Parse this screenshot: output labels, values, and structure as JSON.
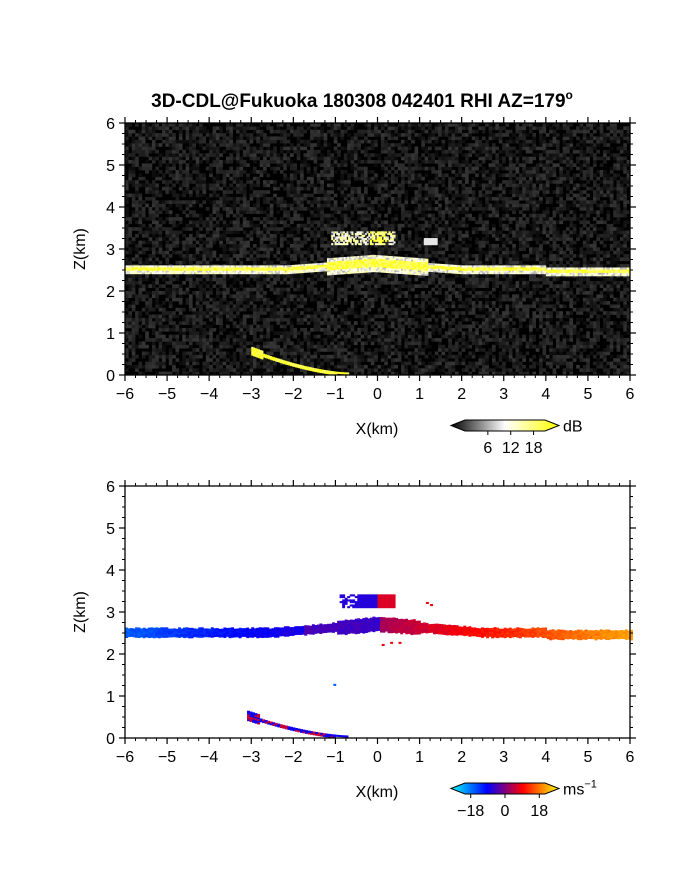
{
  "chart_data": [
    {
      "type": "heatmap",
      "title": "3D-CDL@Fukuoka 180308 042401 RHI AZ=179",
      "title_superscript": "o",
      "xlabel": "X(km)",
      "ylabel": "Z(km)",
      "xlim": [
        -6,
        6
      ],
      "ylim": [
        0,
        6
      ],
      "x_ticks": [
        "-6",
        "-5",
        "-4",
        "-3",
        "-2",
        "-1",
        "0",
        "1",
        "2",
        "3",
        "4",
        "5",
        "6"
      ],
      "y_ticks": [
        "0",
        "1",
        "2",
        "3",
        "4",
        "5",
        "6"
      ],
      "quantity": "backscatter intensity",
      "colorbar": {
        "unit": "dB",
        "ticks": [
          "6",
          "12",
          "18"
        ],
        "range": [
          0,
          21
        ],
        "colors": [
          "#000000",
          "#ffffff",
          "#ffff00"
        ]
      },
      "features": [
        {
          "name": "cloud-base layer",
          "x": [
            -6,
            6
          ],
          "z": [
            2.35,
            2.65
          ],
          "intensity_db": 18
        },
        {
          "name": "elevated echo",
          "x": [
            -1.1,
            0.4
          ],
          "z": [
            3.1,
            3.4
          ],
          "intensity_db": 14
        },
        {
          "name": "near-surface streak",
          "x": [
            -3.0,
            -0.7
          ],
          "z": [
            0.0,
            0.6
          ],
          "intensity_db": 18
        }
      ]
    },
    {
      "type": "heatmap",
      "xlabel": "X(km)",
      "ylabel": "Z(km)",
      "xlim": [
        -6,
        6
      ],
      "ylim": [
        0,
        6
      ],
      "x_ticks": [
        "-6",
        "-5",
        "-4",
        "-3",
        "-2",
        "-1",
        "0",
        "1",
        "2",
        "3",
        "4",
        "5",
        "6"
      ],
      "y_ticks": [
        "0",
        "1",
        "2",
        "3",
        "4",
        "5",
        "6"
      ],
      "quantity": "Doppler velocity",
      "colorbar": {
        "unit": "ms",
        "unit_superscript": "-1",
        "ticks": [
          "-18",
          "0",
          "18"
        ],
        "range": [
          -21,
          21
        ],
        "colors": [
          "#00ffff",
          "#0000ff",
          "#ff0000",
          "#ffff00"
        ]
      },
      "features": [
        {
          "name": "cloud-base layer",
          "x": [
            -6,
            6
          ],
          "z": [
            2.35,
            2.65
          ],
          "velocity_ms": [
            -12,
            16
          ]
        },
        {
          "name": "elevated echo",
          "x": [
            -0.9,
            0.4
          ],
          "z": [
            3.1,
            3.4
          ],
          "velocity_ms": [
            -6,
            6
          ]
        },
        {
          "name": "near-surface streak",
          "x": [
            -3.1,
            -0.7
          ],
          "z": [
            0.0,
            0.55
          ],
          "velocity_ms": [
            -6,
            3
          ]
        }
      ]
    }
  ]
}
